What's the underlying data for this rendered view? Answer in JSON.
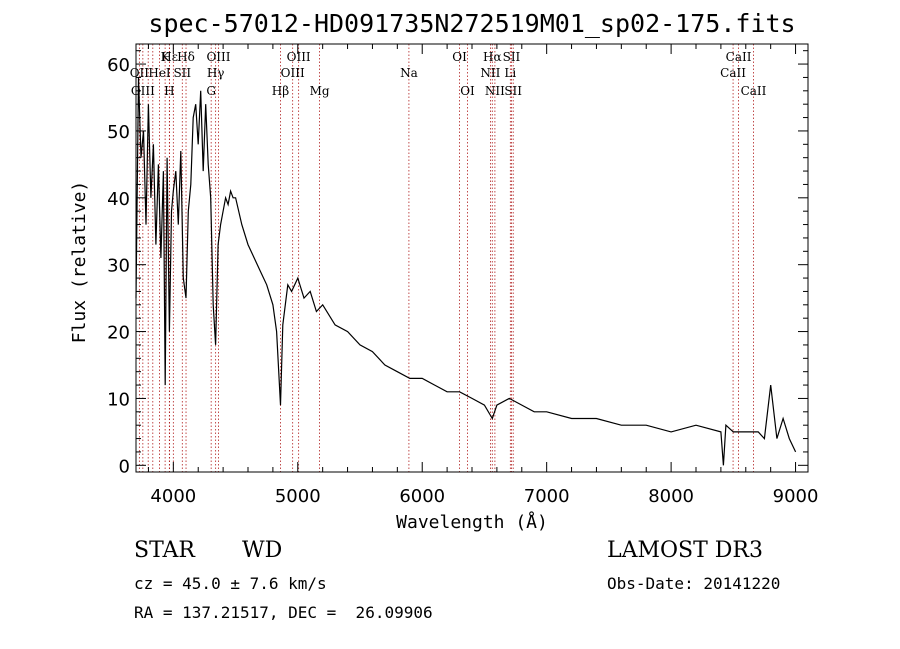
{
  "chart_data": {
    "type": "line",
    "title": "spec-57012-HD091735N272519M01_sp02-175.fits",
    "xlabel": "Wavelength (Å)",
    "ylabel": "Flux (relative)",
    "xlim": [
      3700,
      9100
    ],
    "ylim": [
      -1,
      63
    ],
    "xticks": [
      4000,
      5000,
      6000,
      7000,
      8000,
      9000
    ],
    "yticks": [
      0,
      10,
      20,
      30,
      40,
      50,
      60
    ],
    "series": [
      {
        "name": "spectrum",
        "x": [
          3700,
          3720,
          3740,
          3760,
          3780,
          3800,
          3820,
          3840,
          3860,
          3880,
          3900,
          3920,
          3935,
          3950,
          3968,
          3985,
          4000,
          4020,
          4040,
          4060,
          4080,
          4102,
          4120,
          4140,
          4160,
          4180,
          4200,
          4220,
          4240,
          4260,
          4280,
          4300,
          4320,
          4340,
          4360,
          4380,
          4400,
          4420,
          4440,
          4460,
          4480,
          4500,
          4550,
          4600,
          4650,
          4700,
          4750,
          4800,
          4830,
          4861,
          4880,
          4900,
          4920,
          4950,
          5000,
          5050,
          5100,
          5150,
          5200,
          5300,
          5400,
          5500,
          5600,
          5700,
          5800,
          5900,
          6000,
          6100,
          6200,
          6300,
          6400,
          6500,
          6563,
          6600,
          6700,
          6800,
          6900,
          7000,
          7200,
          7400,
          7600,
          7800,
          8000,
          8200,
          8400,
          8420,
          8440,
          8500,
          8600,
          8700,
          8750,
          8800,
          8850,
          8900,
          8950,
          9000
        ],
        "y": [
          25,
          58,
          46,
          50,
          36,
          54,
          40,
          48,
          33,
          45,
          31,
          44,
          12,
          46,
          20,
          38,
          41,
          44,
          36,
          47,
          28,
          25,
          38,
          42,
          52,
          54,
          48,
          56,
          44,
          54,
          45,
          40,
          24,
          18,
          33,
          36,
          38,
          40,
          39,
          41,
          40,
          40,
          36,
          33,
          31,
          29,
          27,
          24,
          20,
          9,
          21,
          24,
          27,
          26,
          28,
          25,
          26,
          23,
          24,
          21,
          20,
          18,
          17,
          15,
          14,
          13,
          13,
          12,
          11,
          11,
          10,
          9,
          7,
          9,
          10,
          9,
          8,
          8,
          7,
          7,
          6,
          6,
          5,
          6,
          5,
          0,
          6,
          5,
          5,
          5,
          4,
          12,
          4,
          7,
          4,
          2
        ]
      }
    ],
    "lines_row1": [
      {
        "label": "Hε",
        "x": 3970
      },
      {
        "label": "K",
        "x": 3934
      },
      {
        "label": "Hδ",
        "x": 4102
      },
      {
        "label": "OIII",
        "x": 4363
      },
      {
        "label": "OIII",
        "x": 5007
      },
      {
        "label": "OI",
        "x": 6300
      },
      {
        "label": "Hα",
        "x": 6563
      },
      {
        "label": "SII",
        "x": 6717
      },
      {
        "label": "CaII",
        "x": 8542
      }
    ],
    "lines_row2": [
      {
        "label": "OII",
        "x": 3727
      },
      {
        "label": "HeI",
        "x": 3889
      },
      {
        "label": "SII",
        "x": 4072
      },
      {
        "label": "Hγ",
        "x": 4340
      },
      {
        "label": "OIII",
        "x": 4959
      },
      {
        "label": "Na",
        "x": 5893
      },
      {
        "label": "NII",
        "x": 6548
      },
      {
        "label": "Li",
        "x": 6708
      },
      {
        "label": "CaII",
        "x": 8498
      }
    ],
    "lines_row3": [
      {
        "label": "OIII",
        "x": 3755
      },
      {
        "label": "H",
        "x": 3968
      },
      {
        "label": "G",
        "x": 4304
      },
      {
        "label": "Hβ",
        "x": 4861
      },
      {
        "label": "Mg",
        "x": 5175
      },
      {
        "label": "OI",
        "x": 6364
      },
      {
        "label": "NII",
        "x": 6584
      },
      {
        "label": "SII",
        "x": 6731
      },
      {
        "label": "CaII",
        "x": 8662
      }
    ],
    "extra_lines": [
      3798,
      3835,
      4000
    ]
  },
  "info": {
    "class": "STAR",
    "subclass": "WD",
    "survey": "LAMOST DR3",
    "cz": "cz = 45.0 ± 7.6 km/s",
    "obsdate": "Obs-Date: 20141220",
    "radec": "RA = 137.21517, DEC =  26.09906"
  }
}
